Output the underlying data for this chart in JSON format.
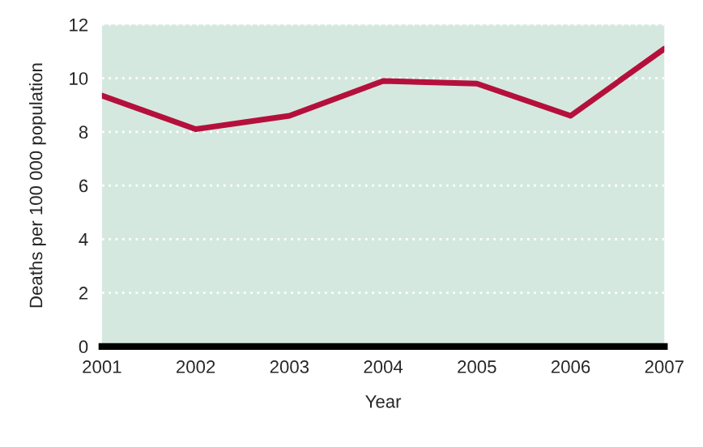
{
  "chart_data": {
    "type": "line",
    "xlabel": "Year",
    "ylabel": "Deaths per 100 000 population",
    "x": [
      2001,
      2002,
      2003,
      2004,
      2005,
      2006,
      2007
    ],
    "series": [
      {
        "color": "#b5103c",
        "values": [
          9.35,
          8.1,
          8.6,
          9.9,
          9.8,
          8.6,
          11.1
        ]
      }
    ],
    "xlim": [
      2001,
      2007
    ],
    "xticks": [
      2001,
      2002,
      2003,
      2004,
      2005,
      2006,
      2007
    ],
    "ylim": [
      0,
      12
    ],
    "yticks": [
      0,
      2,
      4,
      6,
      8,
      10,
      12
    ],
    "grid": "y",
    "marker": "none",
    "line_style": "solid"
  }
}
